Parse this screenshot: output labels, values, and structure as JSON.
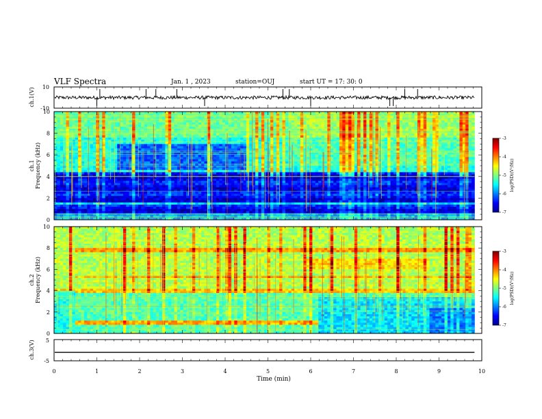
{
  "header": {
    "title": "VLF Spectra",
    "date": "Jan. 1 , 2023",
    "station": "station=OUJ",
    "start": "start UT = 17: 30: 0"
  },
  "chart_data": [
    {
      "type": "line",
      "name": "ch1-waveform",
      "ylabel": "ch.1(V)",
      "ylim": [
        -10,
        10
      ],
      "yticks": [
        "10",
        "-10"
      ],
      "xlim": [
        0,
        10
      ],
      "baseline": 0,
      "spikes_min": [
        1.0,
        1.07,
        2.15,
        2.38,
        2.87,
        3.52,
        5.35,
        5.5,
        6.0,
        7.85,
        7.93,
        8.2,
        8.5
      ]
    },
    {
      "type": "heatmap",
      "name": "ch1-spectrogram",
      "ylabel": "ch.1\nFrequency (kHz)",
      "ylabel_top": "ch.1",
      "ylabel_bottom": "Frequency (kHz)",
      "xlim": [
        0,
        10
      ],
      "data_end_min": 9.83,
      "ylim": [
        0,
        10
      ],
      "yticks": [
        "0",
        "2",
        "4",
        "6",
        "8",
        "10"
      ],
      "colorbar": {
        "label": "log(PSD)(V²/Hz)",
        "range": [
          -7,
          -3
        ],
        "ticks": [
          "-3",
          "-4",
          "-5",
          "-6",
          "-7"
        ]
      }
    },
    {
      "type": "heatmap",
      "name": "ch2-spectrogram",
      "ylabel_top": "ch.2",
      "ylabel_bottom": "Frequency (kHz)",
      "xlim": [
        0,
        10
      ],
      "data_end_min": 9.83,
      "ylim": [
        0,
        10
      ],
      "yticks": [
        "0",
        "2",
        "4",
        "6",
        "8",
        "10"
      ],
      "colorbar": {
        "label": "log(PSD)(V²/Hz)",
        "range": [
          -7,
          -3
        ],
        "ticks": [
          "-3",
          "-4",
          "-5",
          "-6",
          "-7"
        ]
      }
    },
    {
      "type": "line",
      "name": "ch3-waveform",
      "ylabel": "ch.3(V)",
      "ylim": [
        -5,
        5
      ],
      "yticks": [
        "5",
        "-5"
      ],
      "xlim": [
        0,
        10
      ],
      "baseline": -1.0
    }
  ],
  "x_axis": {
    "label": "Time (min)",
    "ticks": [
      "0",
      "1",
      "2",
      "3",
      "4",
      "5",
      "6",
      "7",
      "8",
      "9",
      "10"
    ]
  },
  "colors": {
    "jet": [
      "#00008f",
      "#0000ff",
      "#007fff",
      "#00ffff",
      "#7fff7f",
      "#ffff00",
      "#ff7f00",
      "#ff0000",
      "#7f0000"
    ]
  }
}
